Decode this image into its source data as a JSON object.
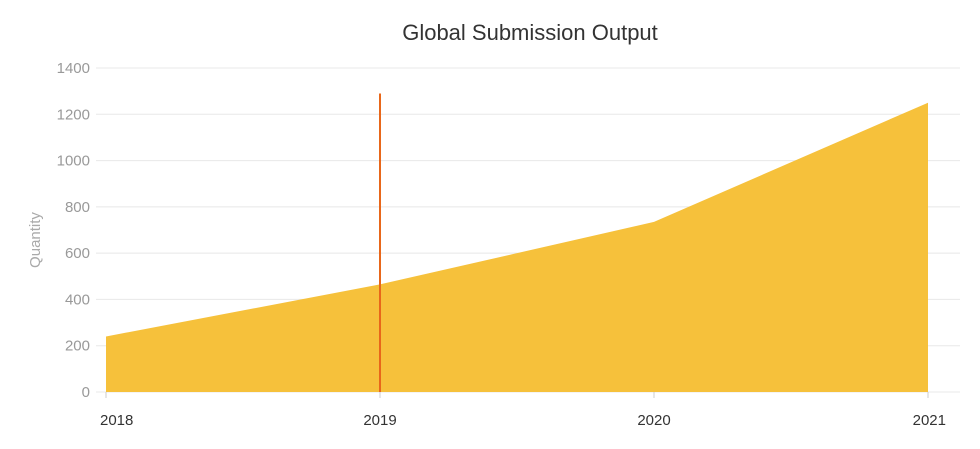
{
  "chart_data": {
    "type": "area",
    "title": "Global Submission Output",
    "xlabel": "",
    "ylabel": "Quantity",
    "x": [
      "2018",
      "2019",
      "2020",
      "2021"
    ],
    "series": [
      {
        "values": [
          240,
          465,
          735,
          1250
        ]
      }
    ],
    "ylim": [
      0,
      1400
    ],
    "yticks": [
      "0",
      "200",
      "400",
      "600",
      "800",
      "1000",
      "1200",
      "1400"
    ],
    "xticks": [
      "2018",
      "2019",
      "2020",
      "2021"
    ],
    "vertical_marker": {
      "x": "2019",
      "y_top": 1290
    },
    "grid": true,
    "legend": "none",
    "colors": {
      "area": "#f6c13b",
      "marker": "#e8671a",
      "grid": "#e8e8e8"
    }
  }
}
